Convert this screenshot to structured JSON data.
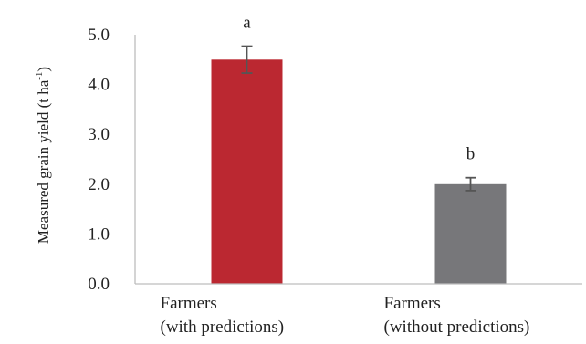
{
  "chart_data": {
    "type": "bar",
    "categories": [
      [
        "Farmers",
        "(with predictions)"
      ],
      [
        "Farmers",
        "(without predictions)"
      ]
    ],
    "values": [
      4.5,
      2.0
    ],
    "errors": [
      0.27,
      0.13
    ],
    "significance": [
      "a",
      "b"
    ],
    "bar_colors": [
      "#bb2831",
      "#77777a"
    ],
    "ylabel": "Measured grain yield (t ha-1)",
    "ylabel_main": "Measured grain yield (t ha",
    "ylabel_sup": "-1",
    "ylabel_end": ")",
    "ylim": [
      0,
      5
    ],
    "yticks": [
      0,
      1,
      2,
      3,
      4,
      5
    ],
    "ytick_labels": [
      "0.0",
      "1.0",
      "2.0",
      "3.0",
      "4.0",
      "5.0"
    ],
    "grid": false,
    "legend": "none"
  }
}
